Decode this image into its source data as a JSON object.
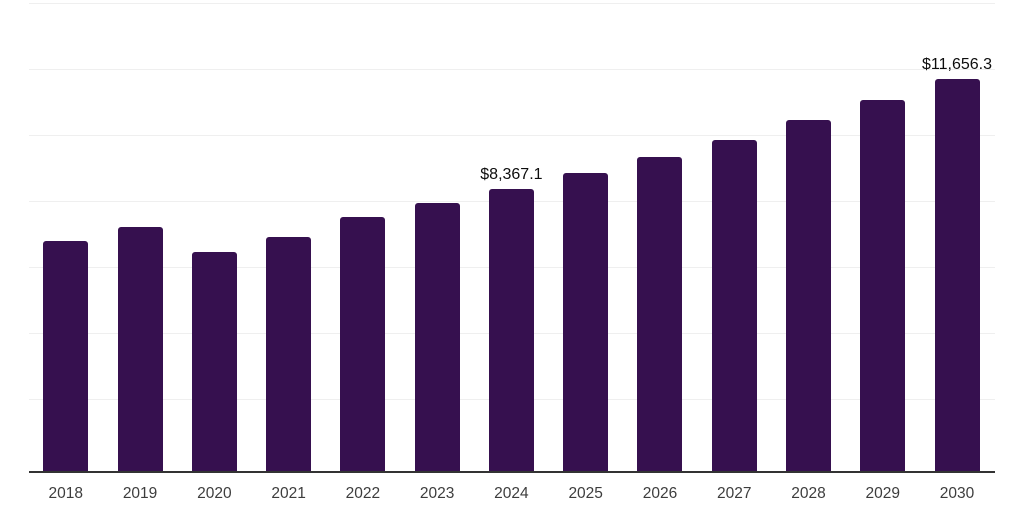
{
  "chart_data": {
    "type": "bar",
    "title": "",
    "xlabel": "",
    "ylabel": "",
    "categories": [
      "2018",
      "2019",
      "2020",
      "2021",
      "2022",
      "2023",
      "2024",
      "2025",
      "2026",
      "2027",
      "2028",
      "2029",
      "2030"
    ],
    "values": [
      6840,
      7255,
      6490,
      6960,
      7535,
      7950,
      8367.1,
      8850,
      9335,
      9830,
      10430,
      11020,
      11656.3
    ],
    "data_labels": [
      {
        "category": "2024",
        "text": "$8,367.1"
      },
      {
        "category": "2030",
        "text": "$11,656.3"
      }
    ],
    "ylim": [
      0,
      13900
    ],
    "grid": "horizontal-only",
    "legend": "none",
    "colors": {
      "bar": "#36104F",
      "axis_line": "#333333",
      "gridline": "#efefef",
      "tick_label": "#3d3d3d",
      "data_label": "#0d0d0d",
      "background": "#ffffff"
    }
  }
}
